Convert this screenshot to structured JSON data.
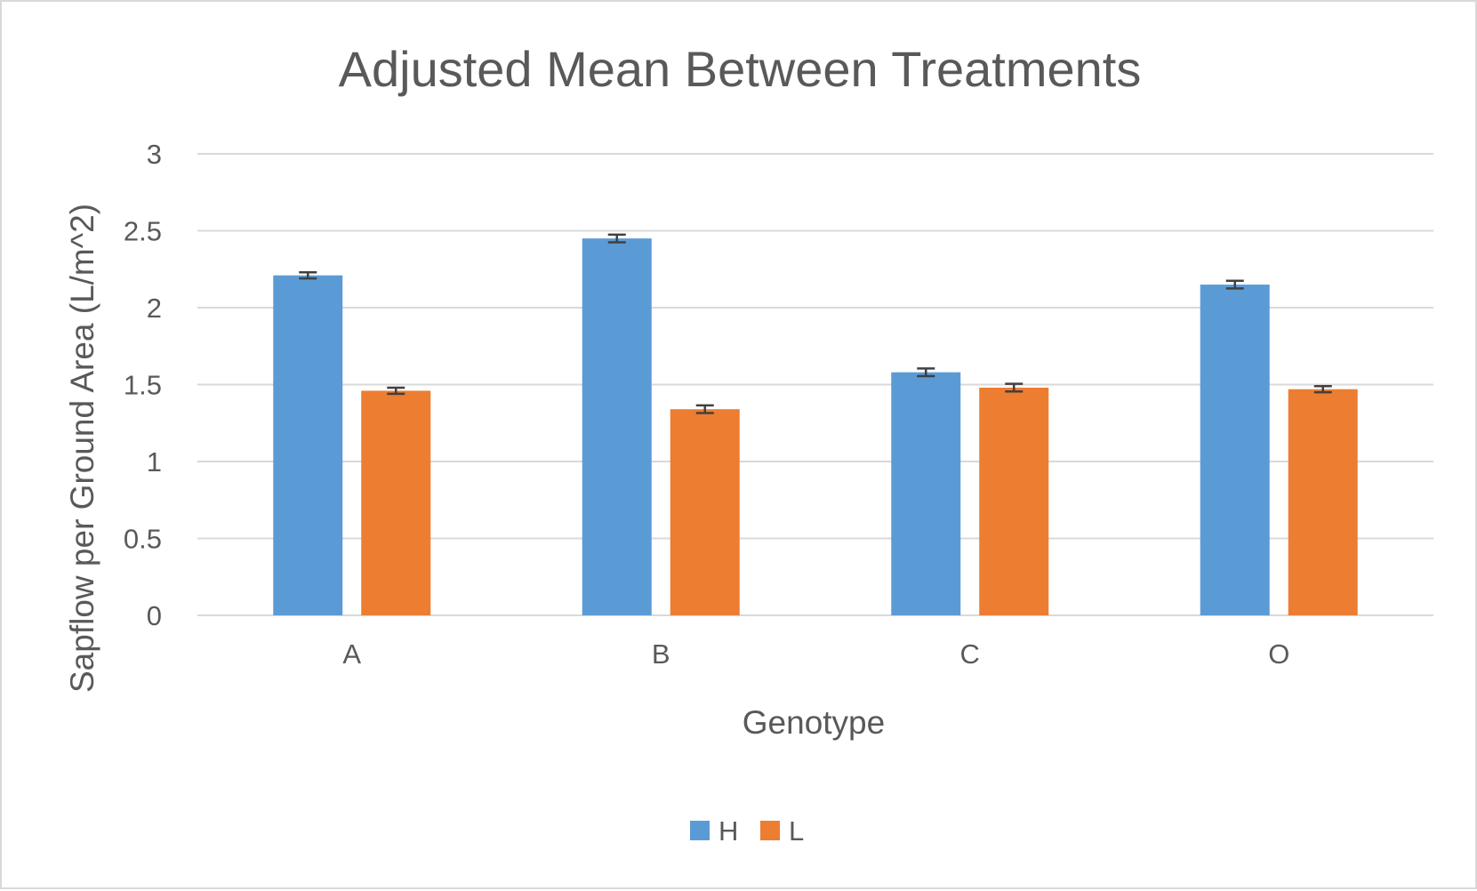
{
  "chart_data": {
    "type": "bar",
    "title": "Adjusted Mean Between Treatments",
    "xlabel": "Genotype",
    "ylabel": "Sapflow per Ground Area (L/m^2)",
    "categories": [
      "A",
      "B",
      "C",
      "O"
    ],
    "series": [
      {
        "name": "H",
        "color": "#5b9bd5",
        "values": [
          2.21,
          2.45,
          1.58,
          2.15
        ],
        "error": [
          0.02,
          0.025,
          0.025,
          0.025
        ]
      },
      {
        "name": "L",
        "color": "#ed7d31",
        "values": [
          1.46,
          1.34,
          1.48,
          1.47
        ],
        "error": [
          0.02,
          0.025,
          0.025,
          0.02
        ]
      }
    ],
    "ylim": [
      0,
      3
    ],
    "yticks": [
      0,
      0.5,
      1,
      1.5,
      2,
      2.5,
      3
    ],
    "ytick_labels": [
      "0",
      "0.5",
      "1",
      "1.5",
      "2",
      "2.5",
      "3"
    ],
    "grid": true,
    "legend_position": "bottom",
    "error_bars": true,
    "colors": {
      "text": "#595959",
      "grid": "#d9d9d9",
      "error_bar": "#404040"
    }
  }
}
